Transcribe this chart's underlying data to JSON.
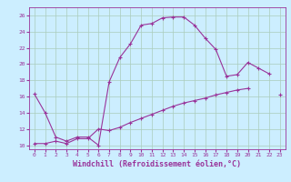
{
  "xlabel": "Windchill (Refroidissement éolien,°C)",
  "background_color": "#cceeff",
  "line_color": "#993399",
  "xlim": [
    -0.5,
    23.5
  ],
  "ylim": [
    9.5,
    27
  ],
  "xticks": [
    0,
    1,
    2,
    3,
    4,
    5,
    6,
    7,
    8,
    9,
    10,
    11,
    12,
    13,
    14,
    15,
    16,
    17,
    18,
    19,
    20,
    21,
    22,
    23
  ],
  "yticks": [
    10,
    12,
    14,
    16,
    18,
    20,
    22,
    24,
    26
  ],
  "curve1_x": [
    0,
    1,
    2,
    3,
    4,
    5,
    6,
    7,
    8,
    9,
    10,
    11,
    12,
    13,
    14,
    15,
    16,
    17,
    18,
    19,
    20,
    21,
    22
  ],
  "curve1_y": [
    16.3,
    14.0,
    11.0,
    10.5,
    11.0,
    11.0,
    10.0,
    17.8,
    20.8,
    22.5,
    24.8,
    25.0,
    25.7,
    25.8,
    25.8,
    24.8,
    23.2,
    21.8,
    18.5,
    18.7,
    20.2,
    19.5,
    18.8
  ],
  "curve2_x": [
    0,
    1,
    2,
    3,
    4,
    5,
    6,
    7,
    8,
    9,
    10,
    11,
    12,
    13,
    14,
    15,
    16,
    17,
    18,
    19,
    20,
    23
  ],
  "curve2_y": [
    10.2,
    10.2,
    10.5,
    10.2,
    10.8,
    10.8,
    12.0,
    11.8,
    12.2,
    12.8,
    13.3,
    13.8,
    14.3,
    14.8,
    15.2,
    15.5,
    15.8,
    16.2,
    16.5,
    16.8,
    17.0,
    16.2
  ],
  "grid_color": "#aaccbb",
  "tick_fontsize": 4.5,
  "xlabel_fontsize": 6.0
}
